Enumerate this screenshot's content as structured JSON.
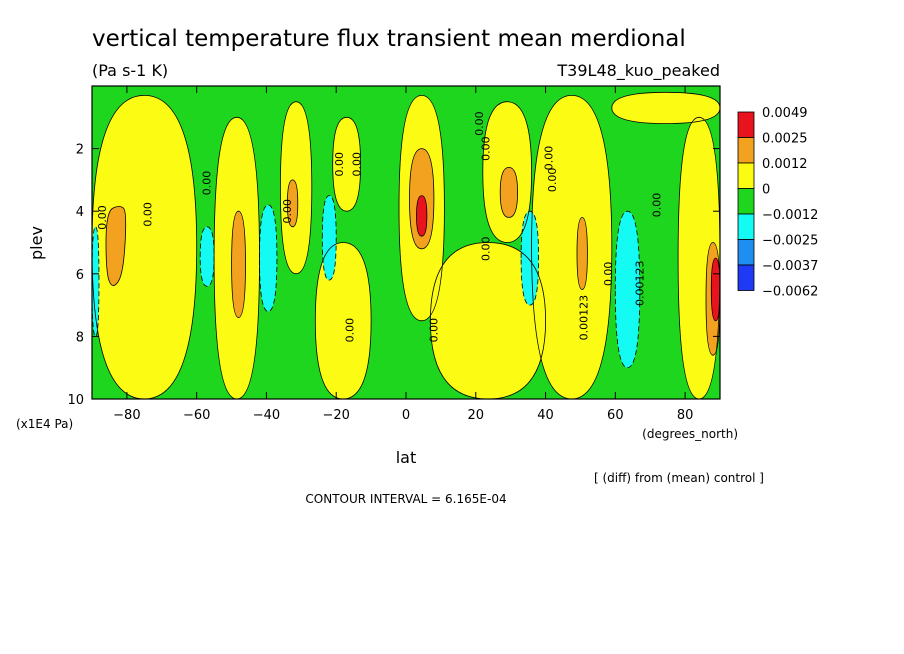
{
  "chart_data": {
    "type": "heatmap",
    "title": "vertical temperature flux transient mean merdional",
    "units": "(Pa s-1 K)",
    "experiment": "T39L48_kuo_peaked",
    "xlabel": "lat",
    "xunits": "(degrees_north)",
    "ylabel": "plev",
    "yunits": "(x1E4 Pa)",
    "xlim": [
      -90,
      90
    ],
    "ylim": [
      10,
      0
    ],
    "x_ticks": [
      -80,
      -60,
      -40,
      -20,
      0,
      20,
      40,
      60,
      80
    ],
    "x_tick_labels": [
      "−80",
      "−60",
      "−40",
      "−20",
      "0",
      "20",
      "40",
      "60",
      "80"
    ],
    "y_ticks": [
      2,
      4,
      6,
      8,
      10
    ],
    "y_tick_labels": [
      "2",
      "4",
      "6",
      "8",
      "10"
    ],
    "note": "[ (diff) from (mean) control ]",
    "contour_interval": "CONTOUR INTERVAL = 6.165E-04",
    "colorbar": {
      "levels": [
        "0.0049",
        "0.0025",
        "0.0012",
        "0",
        "−0.0012",
        "−0.0025",
        "−0.0037",
        "−0.0062"
      ],
      "colors": [
        "#e8131c",
        "#f2a21e",
        "#fbfb14",
        "#1fd61f",
        "#14fbf3",
        "#1e8ff0",
        "#1f3af5"
      ]
    },
    "base_color": "#1fd61f",
    "regions": [
      {
        "level": "pos1",
        "polygon": [
          [
            -90,
            0.3
          ],
          [
            -60,
            0.3
          ],
          [
            -60,
            10
          ],
          [
            -90,
            10
          ]
        ]
      },
      {
        "level": "pos1",
        "polygon": [
          [
            -55,
            1
          ],
          [
            -42,
            1
          ],
          [
            -42,
            10
          ],
          [
            -55,
            10
          ]
        ]
      },
      {
        "level": "pos1",
        "polygon": [
          [
            -36,
            0.5
          ],
          [
            -27,
            0.5
          ],
          [
            -27,
            6
          ],
          [
            -36,
            6
          ]
        ]
      },
      {
        "level": "pos1",
        "polygon": [
          [
            -26,
            5
          ],
          [
            -10,
            5
          ],
          [
            -10,
            10
          ],
          [
            -26,
            10
          ]
        ]
      },
      {
        "level": "pos1",
        "polygon": [
          [
            -21,
            1
          ],
          [
            -13,
            1
          ],
          [
            -13,
            4
          ],
          [
            -21,
            4
          ]
        ]
      },
      {
        "level": "pos1",
        "polygon": [
          [
            -2,
            0.3
          ],
          [
            11,
            0.3
          ],
          [
            11,
            7.5
          ],
          [
            -2,
            7.5
          ]
        ]
      },
      {
        "level": "pos1",
        "polygon": [
          [
            7,
            5
          ],
          [
            40,
            5
          ],
          [
            40,
            10
          ],
          [
            7,
            10
          ]
        ]
      },
      {
        "level": "pos1",
        "polygon": [
          [
            22,
            0.5
          ],
          [
            36,
            0.5
          ],
          [
            36,
            5
          ],
          [
            22,
            5
          ]
        ]
      },
      {
        "level": "pos1",
        "polygon": [
          [
            36,
            0.3
          ],
          [
            59,
            0.3
          ],
          [
            59,
            10
          ],
          [
            36,
            10
          ]
        ]
      },
      {
        "level": "pos1",
        "polygon": [
          [
            59,
            0.2
          ],
          [
            90,
            0.2
          ],
          [
            90,
            1.2
          ],
          [
            59,
            1.2
          ]
        ]
      },
      {
        "level": "pos1",
        "polygon": [
          [
            78,
            1
          ],
          [
            90,
            1
          ],
          [
            90,
            10
          ],
          [
            78,
            10
          ]
        ]
      },
      {
        "level": "pos2",
        "polygon": [
          [
            -86,
            4
          ],
          [
            -82,
            3.8
          ],
          [
            -80,
            4
          ],
          [
            -81,
            6
          ],
          [
            -84,
            6.5
          ],
          [
            -86,
            6
          ]
        ]
      },
      {
        "level": "pos2",
        "polygon": [
          [
            -50,
            4
          ],
          [
            -46,
            4
          ],
          [
            -46,
            7.4
          ],
          [
            -50,
            7.4
          ]
        ]
      },
      {
        "level": "pos2",
        "polygon": [
          [
            -34,
            3
          ],
          [
            -31,
            3
          ],
          [
            -31,
            4.5
          ],
          [
            -34,
            4.5
          ]
        ]
      },
      {
        "level": "pos2",
        "polygon": [
          [
            1,
            2
          ],
          [
            8,
            2
          ],
          [
            8,
            5.2
          ],
          [
            1,
            5.2
          ]
        ]
      },
      {
        "level": "pos2",
        "polygon": [
          [
            27,
            2.6
          ],
          [
            32,
            2.6
          ],
          [
            32,
            4.2
          ],
          [
            27,
            4.2
          ]
        ]
      },
      {
        "level": "pos2",
        "polygon": [
          [
            49,
            4.2
          ],
          [
            52,
            4.2
          ],
          [
            52,
            6.5
          ],
          [
            49,
            6.5
          ]
        ]
      },
      {
        "level": "pos2",
        "polygon": [
          [
            86,
            5
          ],
          [
            90,
            5
          ],
          [
            90,
            8.6
          ],
          [
            86,
            8.6
          ]
        ]
      },
      {
        "level": "pos3",
        "polygon": [
          [
            3,
            3.5
          ],
          [
            6,
            3.5
          ],
          [
            6,
            4.8
          ],
          [
            3,
            4.8
          ]
        ]
      },
      {
        "level": "pos3",
        "polygon": [
          [
            87.5,
            5.5
          ],
          [
            90,
            5.5
          ],
          [
            90,
            7.5
          ],
          [
            87.5,
            7.5
          ]
        ]
      },
      {
        "level": "neg2",
        "polygon": [
          [
            -90,
            4.5
          ],
          [
            -88,
            4.5
          ],
          [
            -88,
            8
          ],
          [
            -90,
            8
          ]
        ]
      },
      {
        "level": "neg2",
        "polygon": [
          [
            -59,
            4.5
          ],
          [
            -55,
            4.5
          ],
          [
            -55,
            6.4
          ],
          [
            -59,
            6.4
          ]
        ]
      },
      {
        "level": "neg2",
        "polygon": [
          [
            -42,
            3.8
          ],
          [
            -37,
            3.8
          ],
          [
            -37,
            7.2
          ],
          [
            -42,
            7.2
          ]
        ]
      },
      {
        "level": "neg2",
        "polygon": [
          [
            -24,
            3.5
          ],
          [
            -20,
            3.5
          ],
          [
            -20,
            6.2
          ],
          [
            -24,
            6.2
          ]
        ]
      },
      {
        "level": "neg2",
        "polygon": [
          [
            33,
            4
          ],
          [
            38,
            4
          ],
          [
            38,
            7
          ],
          [
            33,
            7
          ]
        ]
      },
      {
        "level": "neg2",
        "polygon": [
          [
            60,
            4
          ],
          [
            67,
            4
          ],
          [
            67,
            9
          ],
          [
            60,
            9
          ]
        ]
      }
    ],
    "contour_labels": [
      {
        "text": "0.00",
        "x": -87,
        "y": 4.2
      },
      {
        "text": "0.00",
        "x": -74,
        "y": 4.1
      },
      {
        "text": "0.00",
        "x": -57,
        "y": 3.1
      },
      {
        "text": "0.00",
        "x": -34,
        "y": 4.0
      },
      {
        "text": "0.00",
        "x": -19,
        "y": 2.5
      },
      {
        "text": "0.00",
        "x": -14,
        "y": 2.5
      },
      {
        "text": "0.00",
        "x": -16,
        "y": 7.8
      },
      {
        "text": "0.00",
        "x": 8,
        "y": 7.8
      },
      {
        "text": "0.00",
        "x": 21,
        "y": 1.2
      },
      {
        "text": "0.00",
        "x": 23,
        "y": 2.0
      },
      {
        "text": "0.00",
        "x": 23,
        "y": 5.2
      },
      {
        "text": "0.00",
        "x": 41,
        "y": 2.3
      },
      {
        "text": "0.00",
        "x": 42,
        "y": 3.0
      },
      {
        "text": "0.00123",
        "x": 51,
        "y": 7.4
      },
      {
        "text": "0.00",
        "x": 58,
        "y": 6.0
      },
      {
        "text": "0.00123",
        "x": 67,
        "y": 6.3
      },
      {
        "text": "0.00",
        "x": 72,
        "y": 3.8
      }
    ]
  }
}
